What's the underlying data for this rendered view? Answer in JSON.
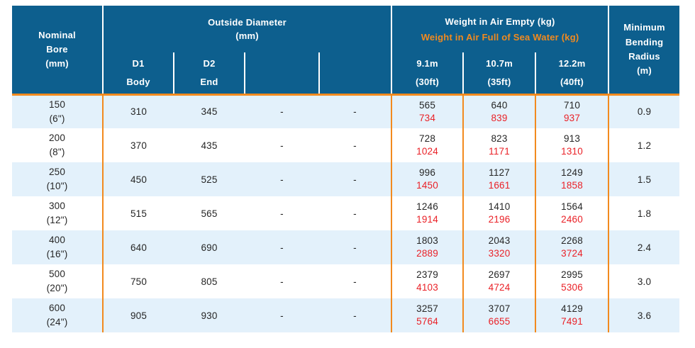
{
  "header": {
    "nominal_bore": "Nominal\nBore\n(mm)",
    "outside_diameter_title": "Outside Diameter",
    "outside_diameter_unit": "(mm)",
    "weight_empty_title": "Weight in Air Empty (kg)",
    "weight_full_title": "Weight in Air Full of Sea Water (kg)",
    "od_subcols": [
      {
        "code": "D1",
        "label": "Body"
      },
      {
        "code": "D2",
        "label": "End"
      },
      {
        "code": "",
        "label": ""
      },
      {
        "code": "",
        "label": ""
      }
    ],
    "weight_subcols": [
      {
        "length": "9.1m",
        "feet": "(30ft)"
      },
      {
        "length": "10.7m",
        "feet": "(35ft)"
      },
      {
        "length": "12.2m",
        "feet": "(40ft)"
      }
    ],
    "min_bending_radius": "Minimum\nBending\nRadius\n(m)"
  },
  "rows": [
    {
      "bore": "150",
      "bore_inches": "(6\")",
      "d1": "310",
      "d2": "345",
      "od3": "-",
      "od4": "-",
      "weights": [
        {
          "empty": "565",
          "full": "734"
        },
        {
          "empty": "640",
          "full": "839"
        },
        {
          "empty": "710",
          "full": "937"
        }
      ],
      "radius": "0.9"
    },
    {
      "bore": "200",
      "bore_inches": "(8\")",
      "d1": "370",
      "d2": "435",
      "od3": "-",
      "od4": "-",
      "weights": [
        {
          "empty": "728",
          "full": "1024"
        },
        {
          "empty": "823",
          "full": "1171"
        },
        {
          "empty": "913",
          "full": "1310"
        }
      ],
      "radius": "1.2"
    },
    {
      "bore": "250",
      "bore_inches": "(10\")",
      "d1": "450",
      "d2": "525",
      "od3": "-",
      "od4": "-",
      "weights": [
        {
          "empty": "996",
          "full": "1450"
        },
        {
          "empty": "1127",
          "full": "1661"
        },
        {
          "empty": "1249",
          "full": "1858"
        }
      ],
      "radius": "1.5"
    },
    {
      "bore": "300",
      "bore_inches": "(12\")",
      "d1": "515",
      "d2": "565",
      "od3": "-",
      "od4": "-",
      "weights": [
        {
          "empty": "1246",
          "full": "1914"
        },
        {
          "empty": "1410",
          "full": "2196"
        },
        {
          "empty": "1564",
          "full": "2460"
        }
      ],
      "radius": "1.8"
    },
    {
      "bore": "400",
      "bore_inches": "(16\")",
      "d1": "640",
      "d2": "690",
      "od3": "-",
      "od4": "-",
      "weights": [
        {
          "empty": "1803",
          "full": "2889"
        },
        {
          "empty": "2043",
          "full": "3320"
        },
        {
          "empty": "2268",
          "full": "3724"
        }
      ],
      "radius": "2.4"
    },
    {
      "bore": "500",
      "bore_inches": "(20\")",
      "d1": "750",
      "d2": "805",
      "od3": "-",
      "od4": "-",
      "weights": [
        {
          "empty": "2379",
          "full": "4103"
        },
        {
          "empty": "2697",
          "full": "4724"
        },
        {
          "empty": "2995",
          "full": "5306"
        }
      ],
      "radius": "3.0"
    },
    {
      "bore": "600",
      "bore_inches": "(24\")",
      "d1": "905",
      "d2": "930",
      "od3": "-",
      "od4": "-",
      "weights": [
        {
          "empty": "3257",
          "full": "5764"
        },
        {
          "empty": "3707",
          "full": "6655"
        },
        {
          "empty": "4129",
          "full": "7491"
        }
      ],
      "radius": "3.6"
    }
  ],
  "colors": {
    "header_bg": "#0d5f8e",
    "accent_orange": "#f28a1e",
    "full_weight_red": "#ea2127",
    "row_alt_bg": "#e3f1fb",
    "body_text": "#262626"
  }
}
